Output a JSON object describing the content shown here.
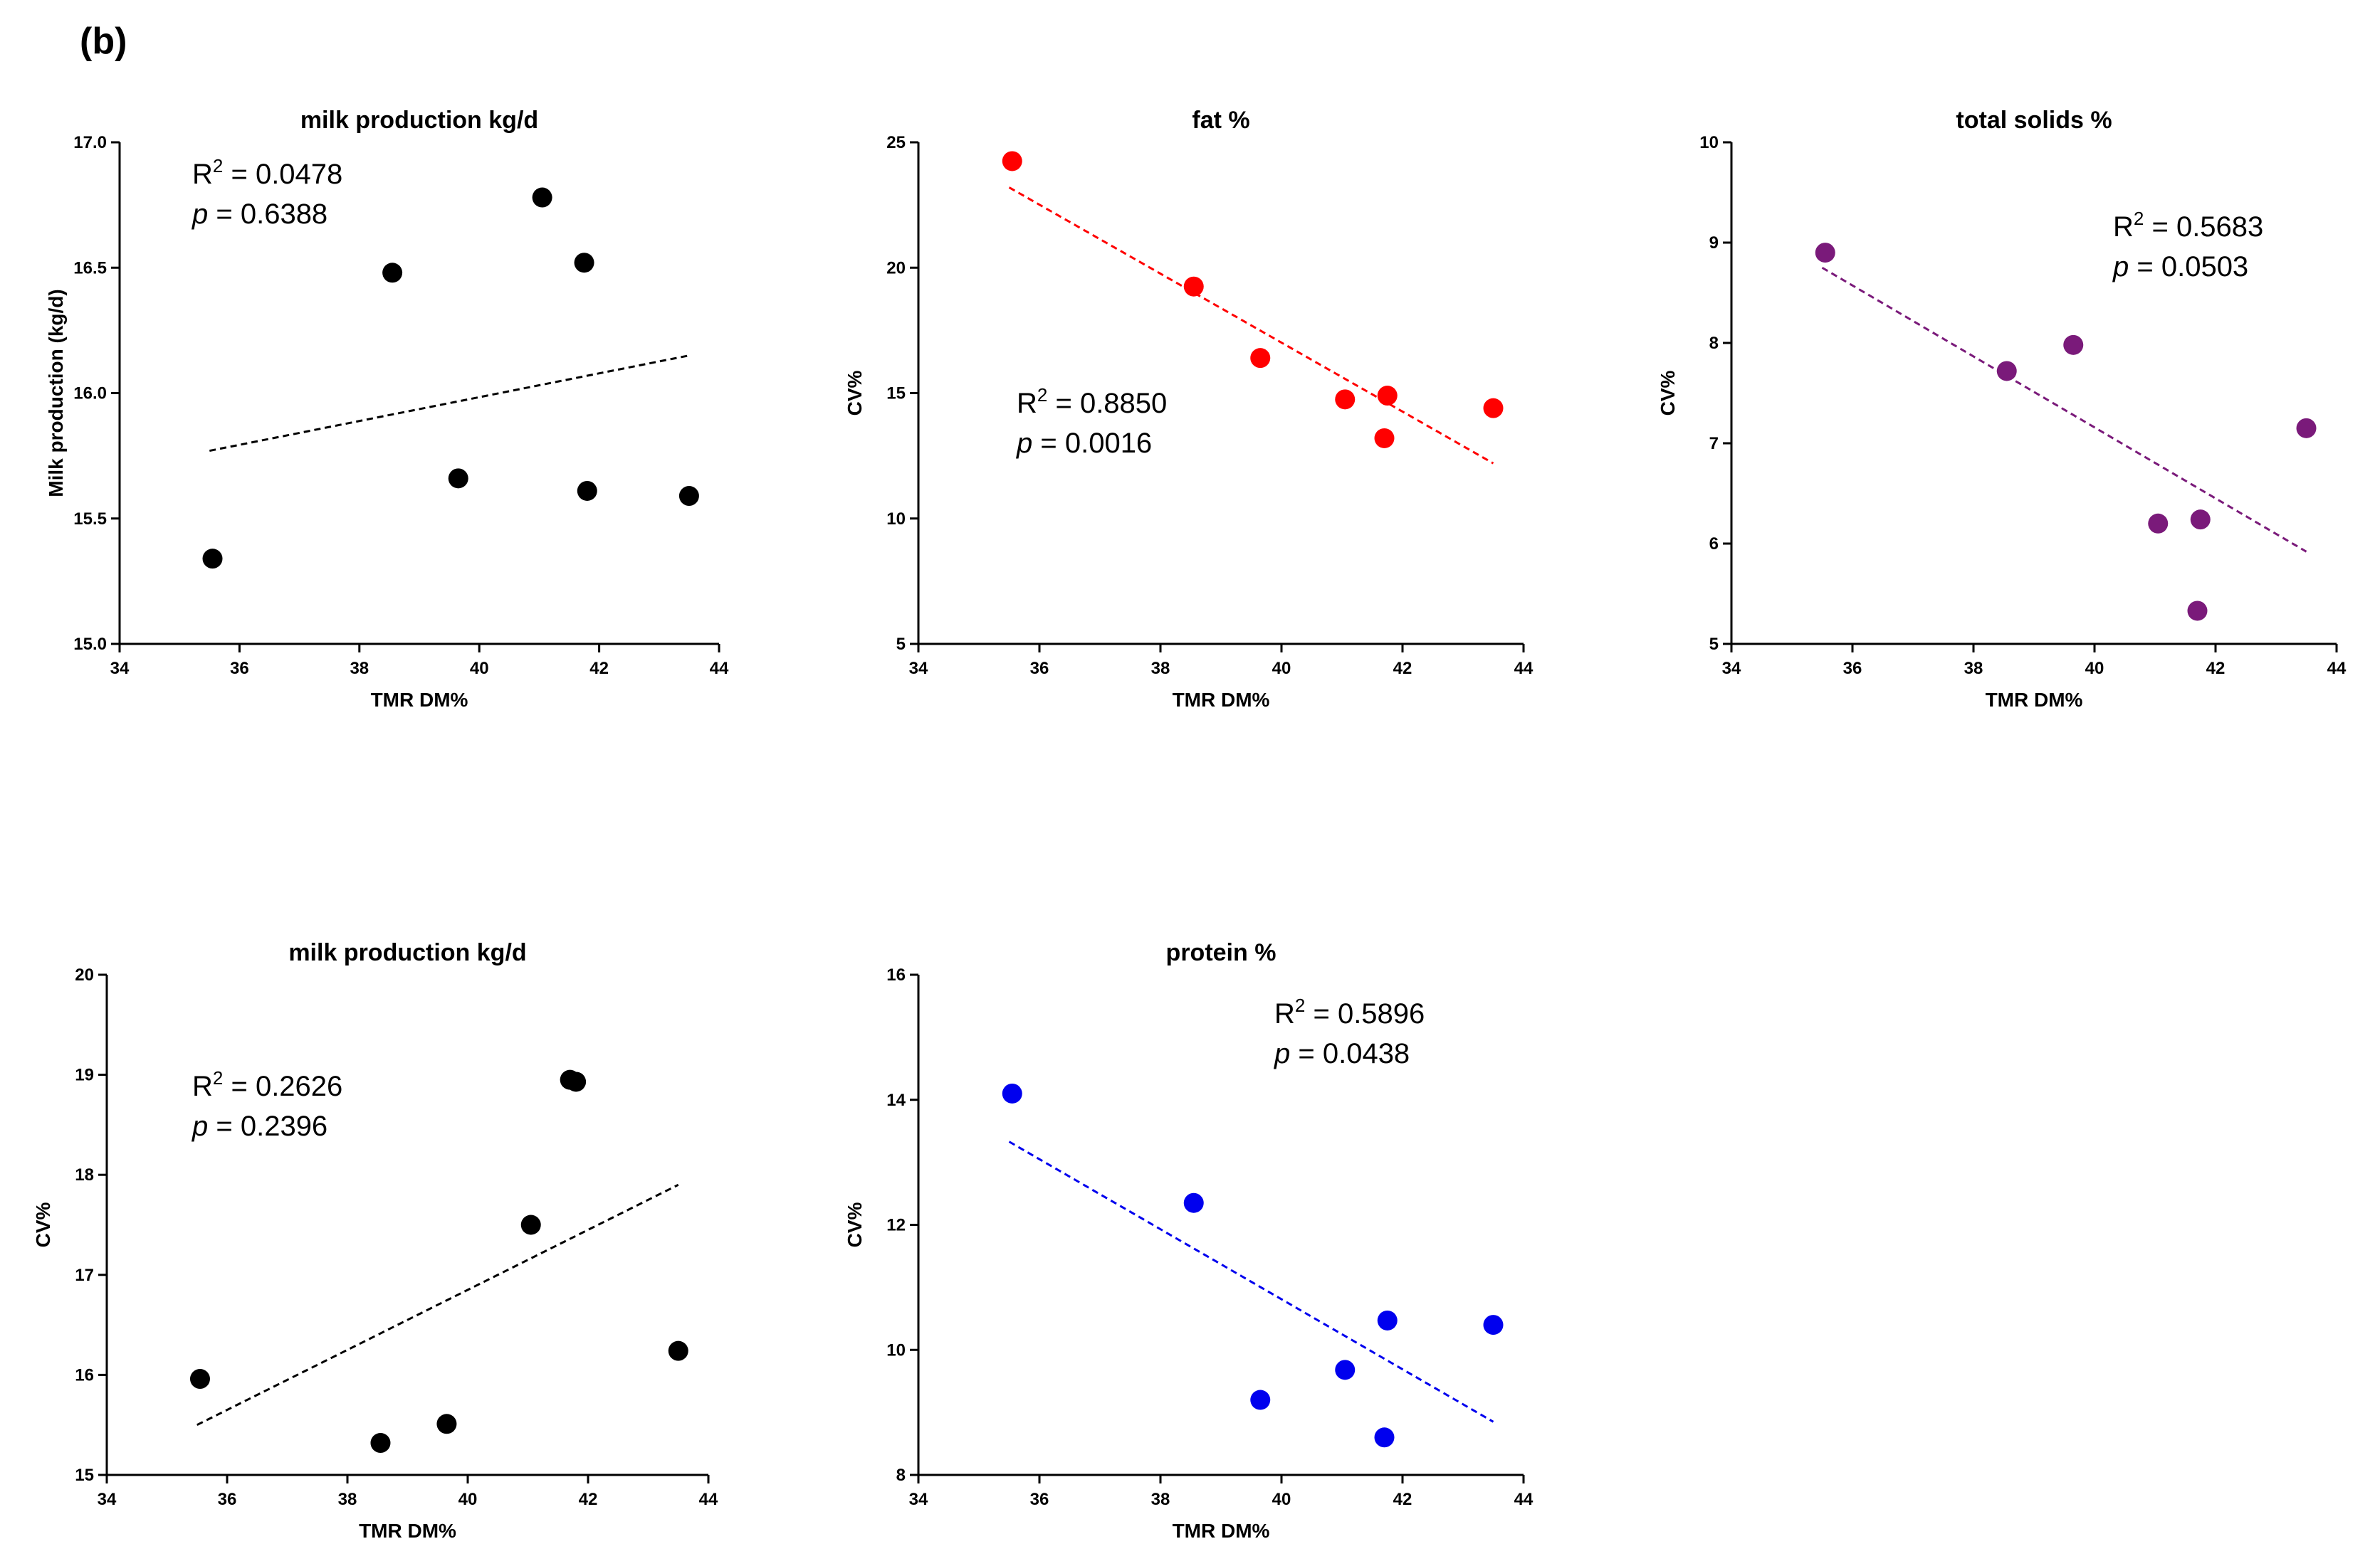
{
  "figure": {
    "panel_label": "(b)"
  },
  "chart_data": [
    {
      "id": "c1",
      "type": "scatter",
      "title": "milk production kg/d",
      "xlabel": "TMR DM%",
      "ylabel": "Milk production (kg/d)",
      "xlim": [
        34,
        44
      ],
      "ylim": [
        15.0,
        17.0
      ],
      "xticks": [
        "34",
        "36",
        "38",
        "40",
        "42",
        "44"
      ],
      "yticks": [
        "15.0",
        "15.5",
        "16.0",
        "16.5",
        "17.0"
      ],
      "color": "#000000",
      "points": [
        {
          "x": 35.55,
          "y": 15.34
        },
        {
          "x": 38.55,
          "y": 16.48
        },
        {
          "x": 39.65,
          "y": 15.66
        },
        {
          "x": 41.05,
          "y": 16.78
        },
        {
          "x": 41.75,
          "y": 16.52
        },
        {
          "x": 41.8,
          "y": 15.61
        },
        {
          "x": 43.5,
          "y": 15.59
        }
      ],
      "fit": {
        "x1": 35.5,
        "y1": 15.77,
        "x2": 43.5,
        "y2": 16.15
      },
      "stats": {
        "r2_label": "R",
        "r2_value": "= 0.0478",
        "p_label": "p",
        "p_value": "= 0.6388"
      }
    },
    {
      "id": "c2",
      "type": "scatter",
      "title": "fat %",
      "xlabel": "TMR DM%",
      "ylabel": "CV%",
      "xlim": [
        34,
        44
      ],
      "ylim": [
        5,
        25
      ],
      "xticks": [
        "34",
        "36",
        "38",
        "40",
        "42",
        "44"
      ],
      "yticks": [
        "5",
        "10",
        "15",
        "20",
        "25"
      ],
      "color": "#ff0000",
      "points": [
        {
          "x": 35.55,
          "y": 24.25
        },
        {
          "x": 38.55,
          "y": 19.25
        },
        {
          "x": 39.65,
          "y": 16.4
        },
        {
          "x": 41.05,
          "y": 14.75
        },
        {
          "x": 41.75,
          "y": 14.9
        },
        {
          "x": 41.7,
          "y": 13.2
        },
        {
          "x": 43.5,
          "y": 14.4
        }
      ],
      "fit": {
        "x1": 35.5,
        "y1": 23.2,
        "x2": 43.5,
        "y2": 12.2
      },
      "stats": {
        "r2_label": "R",
        "r2_value": "= 0.8850",
        "p_label": "p",
        "p_value": "= 0.0016"
      }
    },
    {
      "id": "c3",
      "type": "scatter",
      "title": "total solids %",
      "xlabel": "TMR DM%",
      "ylabel": "CV%",
      "xlim": [
        34,
        44
      ],
      "ylim": [
        5,
        10
      ],
      "xticks": [
        "34",
        "36",
        "38",
        "40",
        "42",
        "44"
      ],
      "yticks": [
        "5",
        "6",
        "7",
        "8",
        "9",
        "10"
      ],
      "color": "#7a1a7a",
      "points": [
        {
          "x": 35.55,
          "y": 8.9
        },
        {
          "x": 38.55,
          "y": 7.72
        },
        {
          "x": 39.65,
          "y": 7.98
        },
        {
          "x": 41.05,
          "y": 6.2
        },
        {
          "x": 41.75,
          "y": 6.24
        },
        {
          "x": 41.7,
          "y": 5.33
        },
        {
          "x": 43.5,
          "y": 7.15
        }
      ],
      "fit": {
        "x1": 35.5,
        "y1": 8.75,
        "x2": 43.5,
        "y2": 5.92
      },
      "stats": {
        "r2_label": "R",
        "r2_value": "= 0.5683",
        "p_label": "p",
        "p_value": "= 0.0503"
      }
    },
    {
      "id": "c4",
      "type": "scatter",
      "title": "milk production kg/d",
      "xlabel": "TMR DM%",
      "ylabel": "CV%",
      "xlim": [
        34,
        44
      ],
      "ylim": [
        15,
        20
      ],
      "xticks": [
        "34",
        "36",
        "38",
        "40",
        "42",
        "44"
      ],
      "yticks": [
        "15",
        "16",
        "17",
        "18",
        "19",
        "20"
      ],
      "color": "#000000",
      "points": [
        {
          "x": 35.55,
          "y": 15.96
        },
        {
          "x": 38.55,
          "y": 15.32
        },
        {
          "x": 39.65,
          "y": 15.51
        },
        {
          "x": 41.05,
          "y": 17.5
        },
        {
          "x": 41.7,
          "y": 18.95
        },
        {
          "x": 41.8,
          "y": 18.93
        },
        {
          "x": 43.5,
          "y": 16.24
        }
      ],
      "fit": {
        "x1": 35.5,
        "y1": 15.5,
        "x2": 43.5,
        "y2": 17.9
      },
      "stats": {
        "r2_label": "R",
        "r2_value": "= 0.2626",
        "p_label": "p",
        "p_value": "= 0.2396"
      }
    },
    {
      "id": "c5",
      "type": "scatter",
      "title": "protein %",
      "xlabel": "TMR DM%",
      "ylabel": "CV%",
      "xlim": [
        34,
        44
      ],
      "ylim": [
        8,
        16
      ],
      "xticks": [
        "34",
        "36",
        "38",
        "40",
        "42",
        "44"
      ],
      "yticks": [
        "8",
        "10",
        "12",
        "14",
        "16"
      ],
      "color": "#0000ee",
      "points": [
        {
          "x": 35.55,
          "y": 14.1
        },
        {
          "x": 38.55,
          "y": 12.35
        },
        {
          "x": 39.65,
          "y": 9.2
        },
        {
          "x": 41.05,
          "y": 9.68
        },
        {
          "x": 41.75,
          "y": 10.47
        },
        {
          "x": 41.7,
          "y": 8.6
        },
        {
          "x": 43.5,
          "y": 10.4
        }
      ],
      "fit": {
        "x1": 35.5,
        "y1": 13.33,
        "x2": 43.5,
        "y2": 8.85
      },
      "stats": {
        "r2_label": "R",
        "r2_value": "= 0.5896",
        "p_label": "p",
        "p_value": "= 0.0438"
      }
    }
  ]
}
